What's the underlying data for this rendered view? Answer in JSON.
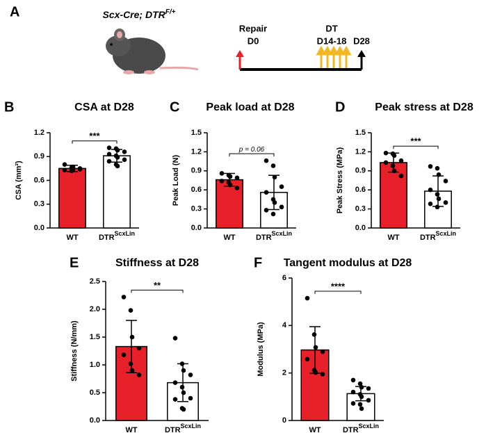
{
  "panel_a": {
    "letter": "A",
    "genotype": "Scx-Cre; DTR",
    "genotype_sup": "F/+",
    "timeline": {
      "repair": "Repair",
      "start": "D0",
      "dt": "DT",
      "dt_days": "D14-18",
      "end": "D28"
    }
  },
  "chart_data": [
    {
      "type": "bar",
      "panel": "B",
      "title": "CSA at D28",
      "y_label": "CSA (mm²)",
      "categories": [
        "WT",
        "DTR"
      ],
      "category_sup": [
        null,
        "ScxLin"
      ],
      "values": [
        0.75,
        0.91
      ],
      "errors": [
        0.04,
        0.08
      ],
      "colors": [
        "#e8202a",
        "#ffffff"
      ],
      "points": [
        [
          0.8,
          0.76,
          0.74,
          0.75,
          0.73,
          0.72,
          0.77,
          0.74
        ],
        [
          1.01,
          1.0,
          0.98,
          0.96,
          0.93,
          0.91,
          0.89,
          0.86,
          0.84,
          0.8,
          0.78
        ]
      ],
      "significance": "***",
      "ylim": [
        0,
        1.2
      ],
      "yticks": [
        {
          "value": 0,
          "label": "0.0"
        },
        0.3,
        0.6,
        0.9,
        1.2
      ]
    },
    {
      "type": "bar",
      "panel": "C",
      "title": "Peak load at D28",
      "y_label": "Peak Load (N)",
      "categories": [
        "WT",
        "DTR"
      ],
      "category_sup": [
        null,
        "ScxLin"
      ],
      "values": [
        0.76,
        0.56
      ],
      "errors": [
        0.1,
        0.27
      ],
      "colors": [
        "#e8202a",
        "#ffffff"
      ],
      "points": [
        [
          0.86,
          0.83,
          0.81,
          0.79,
          0.74,
          0.72,
          0.68,
          0.63
        ],
        [
          1.06,
          0.98,
          0.8,
          0.65,
          0.56,
          0.45,
          0.4,
          0.33,
          0.28,
          0.22
        ]
      ],
      "significance": "p = 0.06",
      "ylim": [
        0,
        1.5
      ],
      "yticks": [
        {
          "value": 0,
          "label": "0.0"
        },
        0.3,
        0.6,
        0.9,
        1.2,
        1.5
      ]
    },
    {
      "type": "bar",
      "panel": "D",
      "title": "Peak stress at D28",
      "y_label": "Peak  Stress (MPa)",
      "categories": [
        "WT",
        "DTR"
      ],
      "category_sup": [
        null,
        "ScxLin"
      ],
      "values": [
        1.03,
        0.58
      ],
      "errors": [
        0.15,
        0.24
      ],
      "colors": [
        "#e8202a",
        "#ffffff"
      ],
      "points": [
        [
          1.18,
          1.17,
          1.14,
          1.06,
          1.03,
          0.98,
          0.9,
          0.82
        ],
        [
          0.97,
          0.94,
          0.84,
          0.74,
          0.6,
          0.53,
          0.46,
          0.4,
          0.38,
          0.33
        ]
      ],
      "significance": "***",
      "ylim": [
        0,
        1.5
      ],
      "yticks": [
        {
          "value": 0,
          "label": "0.0"
        },
        0.3,
        0.6,
        0.9,
        1.2,
        1.5
      ]
    },
    {
      "type": "bar",
      "panel": "E",
      "title": "Stiffness at D28",
      "y_label": "Stiffness (N/mm)",
      "categories": [
        "WT",
        "DTR"
      ],
      "category_sup": [
        null,
        "ScxLin"
      ],
      "values": [
        1.33,
        0.68
      ],
      "errors": [
        0.47,
        0.34
      ],
      "colors": [
        "#e8202a",
        "#ffffff"
      ],
      "points": [
        [
          2.22,
          1.98,
          1.5,
          1.3,
          1.18,
          1.02,
          0.9,
          0.82
        ],
        [
          1.48,
          1.02,
          0.9,
          0.82,
          0.68,
          0.6,
          0.5,
          0.4,
          0.38,
          0.22,
          0.2
        ]
      ],
      "significance": "**",
      "ylim": [
        0,
        2.5
      ],
      "yticks": [
        {
          "value": 0,
          "label": "0.0"
        },
        0.5,
        {
          "value": 1,
          "label": "1.0"
        },
        1.5,
        {
          "value": 2,
          "label": "2.0"
        },
        2.5
      ]
    },
    {
      "type": "bar",
      "panel": "F",
      "title": "Tangent modulus at D28",
      "y_label": "Modulus (MPa)",
      "categories": [
        "WT",
        "DTR"
      ],
      "category_sup": [
        null,
        "ScxLin"
      ],
      "values": [
        2.97,
        1.13
      ],
      "errors": [
        0.98,
        0.3
      ],
      "colors": [
        "#e8202a",
        "#ffffff"
      ],
      "points": [
        [
          5.15,
          3.62,
          3.08,
          2.9,
          2.58,
          2.12,
          2.02,
          1.95
        ],
        [
          1.7,
          1.55,
          1.4,
          1.35,
          1.2,
          1.1,
          1.0,
          0.85,
          0.72,
          0.68,
          0.5
        ]
      ],
      "significance": "****",
      "ylim": [
        0,
        6
      ],
      "yticks": [
        0,
        2,
        4,
        6
      ]
    }
  ]
}
